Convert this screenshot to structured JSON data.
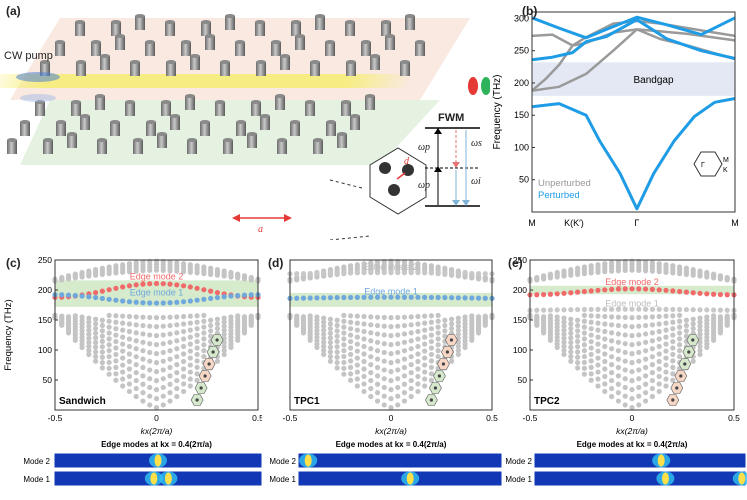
{
  "panel_labels": {
    "a": "(a)",
    "b": "(b)",
    "c": "(c)",
    "d": "(d)",
    "e": "(e)"
  },
  "panel_a": {
    "cw_pump": "CW pump",
    "lattice_const": "a",
    "hole_param": "d",
    "fwm": "FWM",
    "omega_p1": "ωp",
    "omega_p2": "ωp",
    "omega_s": "ωs",
    "omega_i": "ωi",
    "colors": {
      "top_domain": "#f7ddd0",
      "bottom_domain": "#dcedd6",
      "pump_beam": "#f6ee6a",
      "arrow": "#e53935",
      "signal": "#e53935",
      "idler": "#7fb3d5"
    }
  },
  "chart_b": {
    "type": "line",
    "ylabel": "Frequency (THz)",
    "ylim": [
      0,
      310
    ],
    "yticks": [
      "50",
      "100",
      "150",
      "200",
      "250",
      "300"
    ],
    "xticks": [
      "M",
      "K(K′)",
      "Γ",
      "M"
    ],
    "bandgap_label": "Bandgap",
    "bandgap": [
      180,
      232
    ],
    "legend": [
      {
        "name": "Unperturbed",
        "color": "#999999"
      },
      {
        "name": "Perturbed",
        "color": "#1e9ce6"
      }
    ],
    "bz_labels": {
      "gamma": "Γ",
      "m": "M",
      "k": "K"
    },
    "series": [
      {
        "name": "Unperturbed",
        "color": "#9a9a9a",
        "points": [
          [
            0,
            188
          ],
          [
            0.2,
            206
          ],
          [
            0.4,
            228
          ],
          [
            0.6,
            258
          ],
          [
            0.8,
            271
          ],
          [
            1.2,
            292
          ],
          [
            1.55,
            296
          ],
          [
            1.9,
            292
          ],
          [
            2.3,
            285
          ],
          [
            2.7,
            278
          ],
          [
            3,
            273
          ]
        ]
      },
      {
        "name": "Unperturbed",
        "color": "#9a9a9a",
        "points": [
          [
            0,
            273
          ],
          [
            0.3,
            275
          ],
          [
            0.6,
            258
          ],
          [
            0.8,
            262
          ],
          [
            1.2,
            278
          ],
          [
            1.55,
            283
          ],
          [
            1.9,
            280
          ],
          [
            2.3,
            276
          ],
          [
            3,
            266
          ]
        ]
      },
      {
        "name": "Unperturbed",
        "color": "#9a9a9a",
        "points": [
          [
            0,
            188
          ],
          [
            0.4,
            194
          ],
          [
            0.8,
            214
          ],
          [
            1.2,
            250
          ],
          [
            1.55,
            283
          ],
          [
            1.9,
            268
          ],
          [
            2.3,
            258
          ],
          [
            3,
            237
          ]
        ]
      },
      {
        "name": "Perturbed",
        "color": "#1e9ce6",
        "points": [
          [
            0,
            301
          ],
          [
            0.4,
            285
          ],
          [
            0.8,
            270
          ],
          [
            1.1,
            283
          ],
          [
            1.55,
            302
          ],
          [
            2,
            290
          ],
          [
            2.5,
            275
          ],
          [
            3,
            301
          ]
        ]
      },
      {
        "name": "Perturbed",
        "color": "#1e9ce6",
        "points": [
          [
            0,
            236
          ],
          [
            0.3,
            240
          ],
          [
            0.6,
            247
          ],
          [
            0.8,
            264
          ],
          [
            1.1,
            272
          ],
          [
            1.55,
            298
          ],
          [
            2,
            268
          ],
          [
            2.5,
            250
          ],
          [
            3,
            238
          ]
        ]
      },
      {
        "name": "Perturbed",
        "color": "#1e9ce6",
        "points": [
          [
            0,
            163
          ],
          [
            0.4,
            168
          ],
          [
            0.8,
            150
          ],
          [
            1,
            110
          ],
          [
            1.3,
            60
          ],
          [
            1.55,
            5
          ],
          [
            1.8,
            60
          ],
          [
            2.1,
            110
          ],
          [
            2.4,
            148
          ],
          [
            2.7,
            170
          ],
          [
            3,
            176
          ]
        ]
      }
    ]
  },
  "chart_c": {
    "type": "scatter",
    "ylabel": "Frequency (THz)",
    "xlabel": "kx(2π/a)",
    "xlim": [
      -0.5,
      0.5
    ],
    "ylim": [
      0,
      250
    ],
    "yticks": [
      "50",
      "100",
      "150",
      "200",
      "250"
    ],
    "xticks": [
      "-0.5",
      "0",
      "0.5"
    ],
    "name": "Sandwich",
    "band_label": "Edge modes at kx = 0.4(2π/a)",
    "shade": [
      [
        172,
        216
      ]
    ],
    "edge_modes": [
      {
        "label": "Edge mode 2",
        "color": "#f06a6a",
        "center": 197,
        "amp": 23,
        "shape": "up"
      },
      {
        "label": "Edge mode 1",
        "color": "#6fa8dc",
        "center": 188,
        "amp": -14,
        "shape": "down"
      }
    ]
  },
  "chart_d": {
    "type": "scatter",
    "xlabel": "kx(2π/a)",
    "xlim": [
      -0.5,
      0.5
    ],
    "ylim": [
      0,
      250
    ],
    "xticks": [
      "-0.5",
      "0",
      "0.5"
    ],
    "name": "TPC1",
    "band_label": "Edge modes at kx = 0.4(2π/a)",
    "shade": [
      [
        172,
        195
      ]
    ],
    "edge_modes": [
      {
        "label": "Edge mode 2",
        "color": "#c8c8c8",
        "center": 227,
        "amp": 0,
        "shape": "flat"
      },
      {
        "label": "Edge mode 1",
        "color": "#6fa8dc",
        "center": 186,
        "amp": 0,
        "shape": "flat"
      }
    ]
  },
  "chart_e": {
    "type": "scatter",
    "xlabel": "kx(2π/a)",
    "xlim": [
      -0.5,
      0.5
    ],
    "ylim": [
      0,
      250
    ],
    "yticks": [
      "50",
      "100",
      "150",
      "200",
      "250"
    ],
    "xticks": [
      "-0.5",
      "0",
      "0.5"
    ],
    "name": "TPC2",
    "band_label": "Edge modes at kx = 0.4(2π/a)",
    "shade": [
      [
        193,
        207
      ]
    ],
    "edge_modes": [
      {
        "label": "Edge mode 2",
        "color": "#f06a6a",
        "center": 196,
        "amp": 10,
        "shape": "up"
      },
      {
        "label": "Edge mode 1",
        "color": "#c8c8c8",
        "center": 166,
        "amp": 0,
        "shape": "flat"
      }
    ]
  },
  "mode_rows": [
    "Mode 2",
    "Mode 1"
  ],
  "field_colors": {
    "background": "#1238b5",
    "hot": "#ffe04a",
    "ring": "#33c3f2"
  }
}
